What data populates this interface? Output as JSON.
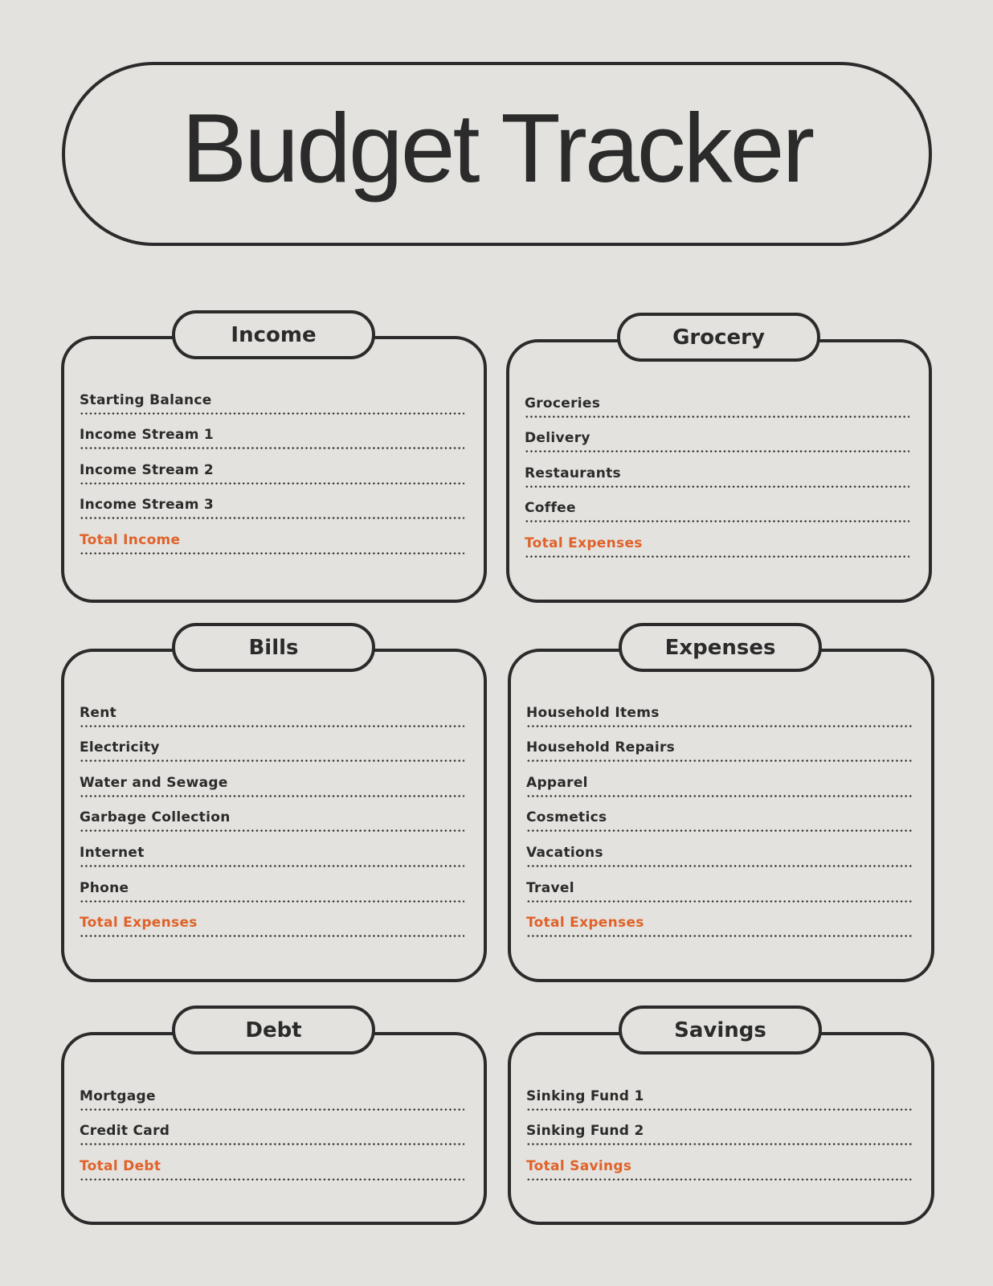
{
  "title": "Budget Tracker",
  "accent_color": "#e0622a",
  "sections": [
    {
      "title": "Income",
      "rows": [
        "Starting Balance",
        "Income Stream 1",
        "Income Stream 2",
        "Income Stream 3"
      ],
      "total": "Total Income"
    },
    {
      "title": "Grocery",
      "rows": [
        "Groceries",
        "Delivery",
        "Restaurants",
        "Coffee"
      ],
      "total": "Total Expenses"
    },
    {
      "title": "Bills",
      "rows": [
        "Rent",
        "Electricity",
        "Water and Sewage",
        "Garbage Collection",
        "Internet",
        "Phone"
      ],
      "total": "Total Expenses"
    },
    {
      "title": "Expenses",
      "rows": [
        "Household Items",
        "Household Repairs",
        "Apparel",
        "Cosmetics",
        "Vacations",
        "Travel"
      ],
      "total": "Total Expenses"
    },
    {
      "title": "Debt",
      "rows": [
        "Mortgage",
        "Credit Card"
      ],
      "total": "Total Debt"
    },
    {
      "title": "Savings",
      "rows": [
        "Sinking Fund 1",
        "Sinking Fund 2"
      ],
      "total": "Total Savings"
    }
  ]
}
